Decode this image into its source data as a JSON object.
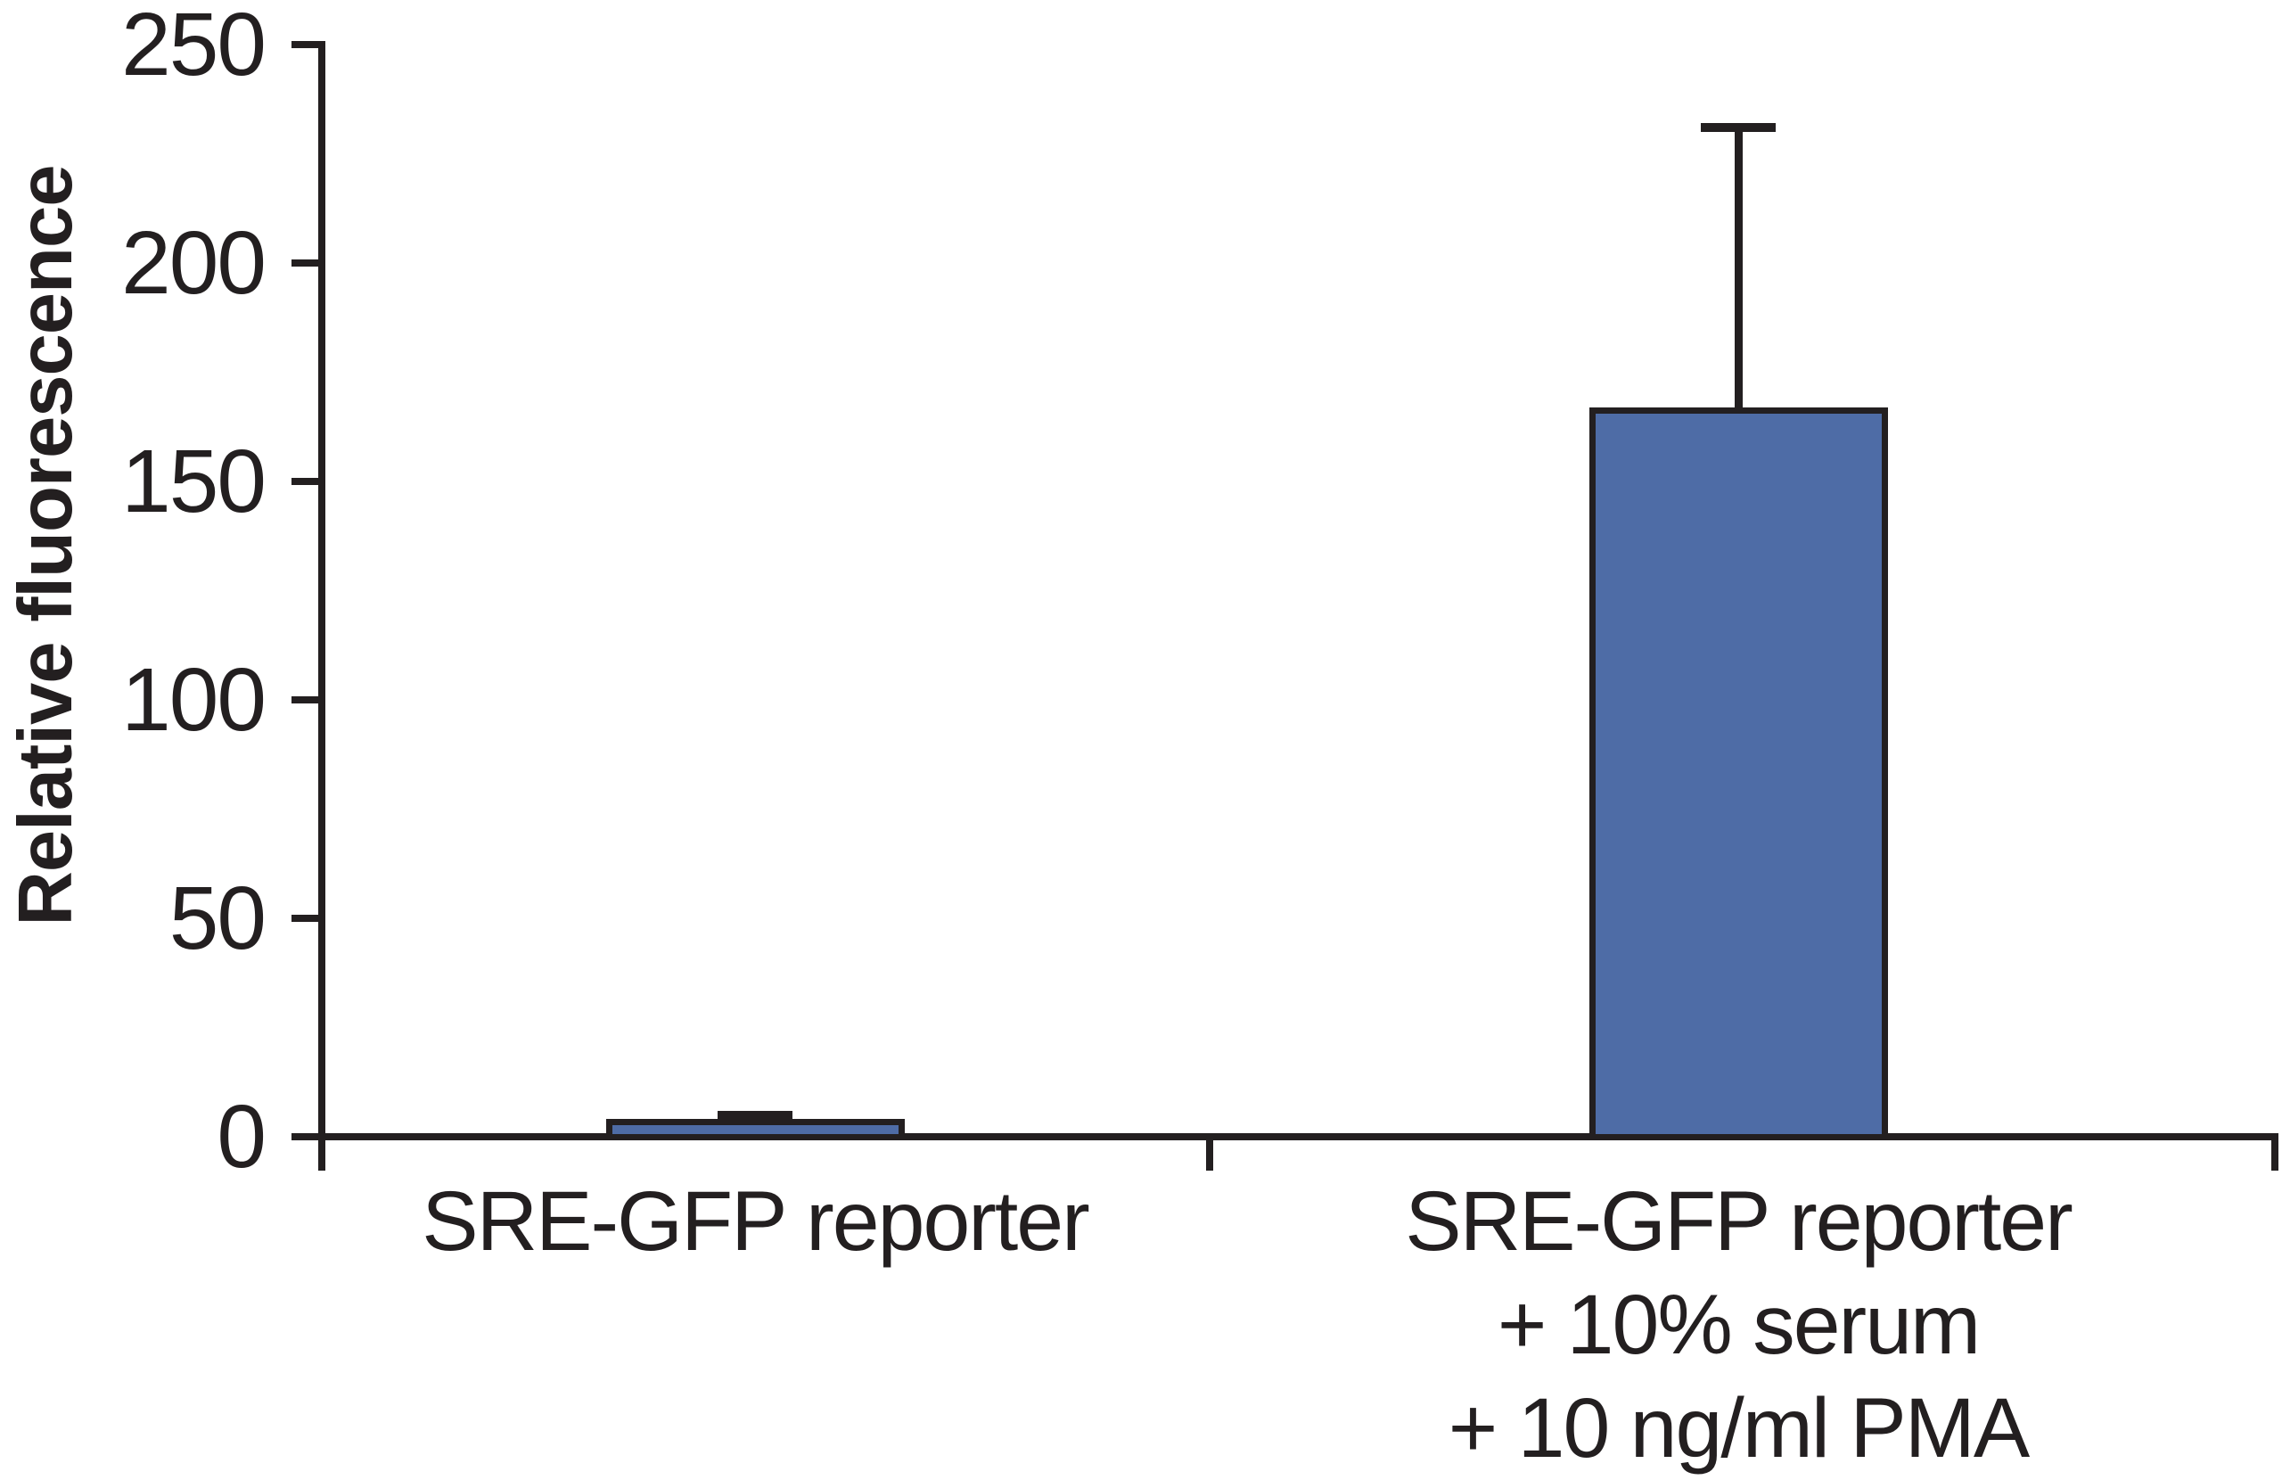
{
  "chart_data": {
    "type": "bar",
    "title": "",
    "xlabel": "",
    "ylabel": "Relative fluorescence",
    "categories": [
      [
        "SRE-GFP reporter"
      ],
      [
        "SRE-GFP reporter",
        "+ 10% serum",
        "+ 10 ng/ml PMA"
      ]
    ],
    "values": [
      4,
      167
    ],
    "errors_up": [
      1,
      64
    ],
    "ylim": [
      0,
      250
    ],
    "yticks": [
      0,
      50,
      100,
      150,
      200,
      250
    ],
    "ytick_labels": [
      "0",
      "50",
      "100",
      "150",
      "200",
      "250"
    ],
    "grid": false,
    "legend": null,
    "bar_color": "#4E6CA6",
    "line_color": "#231F20",
    "background": "#FFFFFF"
  }
}
